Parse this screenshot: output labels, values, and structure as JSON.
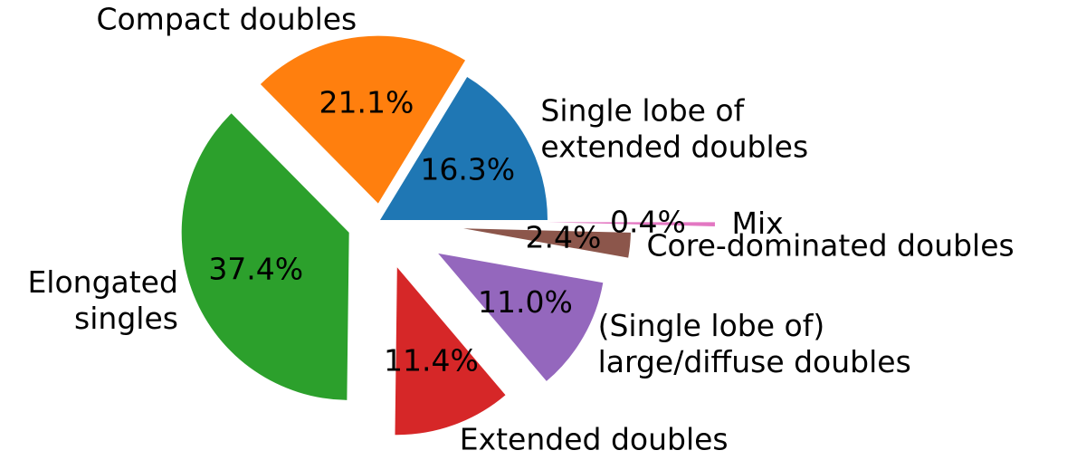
{
  "chart_data": {
    "type": "pie",
    "categories": [
      "Single lobe of\nextended doubles",
      "Compact doubles",
      "Elongated\nsingles",
      "Extended doubles",
      "(Single lobe of)\nlarge/diffuse doubles",
      "Core-dominated doubles",
      "Mix"
    ],
    "values": [
      16.3,
      21.1,
      37.4,
      11.4,
      11.0,
      2.4,
      0.4
    ],
    "value_labels": [
      "16.3%",
      "21.1%",
      "37.4%",
      "11.4%",
      "11.0%",
      "2.4%",
      "0.4%"
    ],
    "colors": [
      "#1f77b4",
      "#ff7f0e",
      "#2ca02c",
      "#d62728",
      "#9467bd",
      "#8c564b",
      "#e377c2"
    ]
  }
}
